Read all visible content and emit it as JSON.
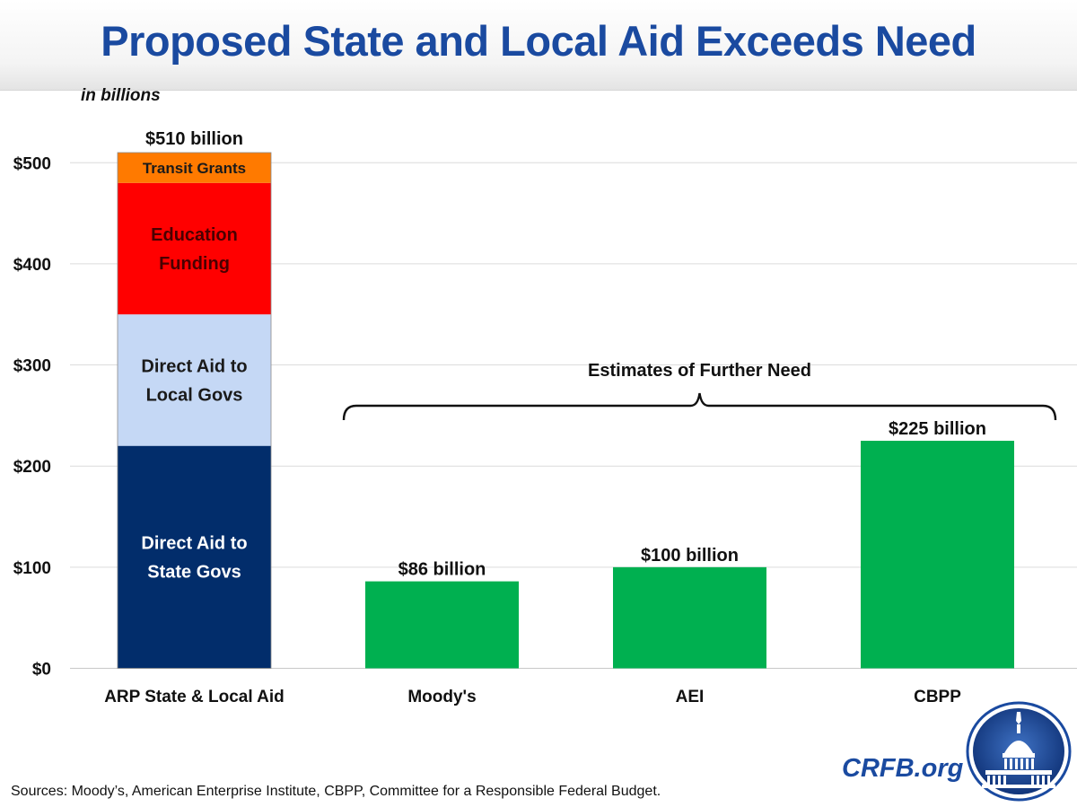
{
  "header": {
    "title": "Proposed State and Local Aid Exceeds Need",
    "unit_label": "in billions"
  },
  "chart_data": {
    "type": "bar",
    "stacked_bar": {
      "category": "ARP State & Local Aid",
      "total_label": "$510 billion",
      "segments": [
        {
          "name": "Direct Aid to State Govs",
          "lines": [
            "Direct Aid to",
            "State Govs"
          ],
          "value": 220,
          "color": "#022d6b",
          "text_color": "#ffffff"
        },
        {
          "name": "Direct Aid to Local Govs",
          "lines": [
            "Direct Aid to",
            "Local Govs"
          ],
          "value": 130,
          "color": "#c5d8f5",
          "text_color": "#1a1a1a"
        },
        {
          "name": "Education Funding",
          "lines": [
            "Education",
            "Funding"
          ],
          "value": 130,
          "color": "#ff0000",
          "text_color": "#4a0000"
        },
        {
          "name": "Transit Grants",
          "lines": [
            "Transit Grants"
          ],
          "value": 30,
          "color": "#ff7a00",
          "text_color": "#1a1a1a"
        }
      ]
    },
    "bars": [
      {
        "category": "Moody's",
        "value": 86,
        "label": "$86 billion",
        "color": "#00b050"
      },
      {
        "category": "AEI",
        "value": 100,
        "label": "$100 billion",
        "color": "#00b050"
      },
      {
        "category": "CBPP",
        "value": 225,
        "label": "$225 billion",
        "color": "#00b050"
      }
    ],
    "bracket_label": "Estimates of Further Need",
    "ylim": [
      0,
      530
    ],
    "yticks": [
      0,
      100,
      200,
      300,
      400,
      500
    ],
    "ytick_labels": [
      "$0",
      "$100",
      "$200",
      "$300",
      "$400",
      "$500"
    ],
    "grid": true
  },
  "footer": {
    "source": "Sources: Moody’s, American Enterprise Institute, CBPP, Committee for a Responsible Federal Budget.",
    "site": "CRFB.org",
    "seal_icon": "capitol-dome-seal-icon"
  }
}
